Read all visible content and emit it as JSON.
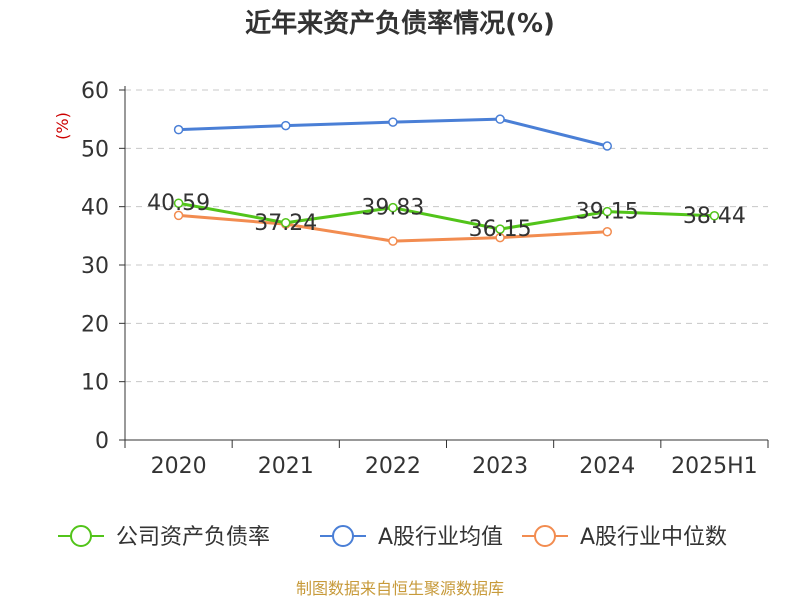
{
  "chart_data": {
    "type": "line",
    "title": "近年来资产负债率情况(%)",
    "y_unit": "(%)",
    "categories": [
      "2020",
      "2021",
      "2022",
      "2023",
      "2024",
      "2025H1"
    ],
    "ylim": [
      0,
      60
    ],
    "yticks": [
      0,
      10,
      20,
      30,
      40,
      50,
      60
    ],
    "grid": true,
    "legend_position": "bottom",
    "series": [
      {
        "name": "公司资产负债率",
        "color": "#52c41a",
        "values": [
          40.59,
          37.24,
          39.83,
          36.15,
          39.15,
          38.44
        ],
        "labels": [
          "40.59",
          "37.24",
          "39.83",
          "36.15",
          "39.15",
          "38.44"
        ]
      },
      {
        "name": "A股行业均值",
        "color": "#4a7fd6",
        "values": [
          53.2,
          53.9,
          54.5,
          55.0,
          50.4,
          null
        ]
      },
      {
        "name": "A股行业中位数",
        "color": "#f28c50",
        "values": [
          38.5,
          37.0,
          34.1,
          34.7,
          35.7,
          null
        ]
      }
    ],
    "source": "制图数据来自恒生聚源数据库"
  }
}
